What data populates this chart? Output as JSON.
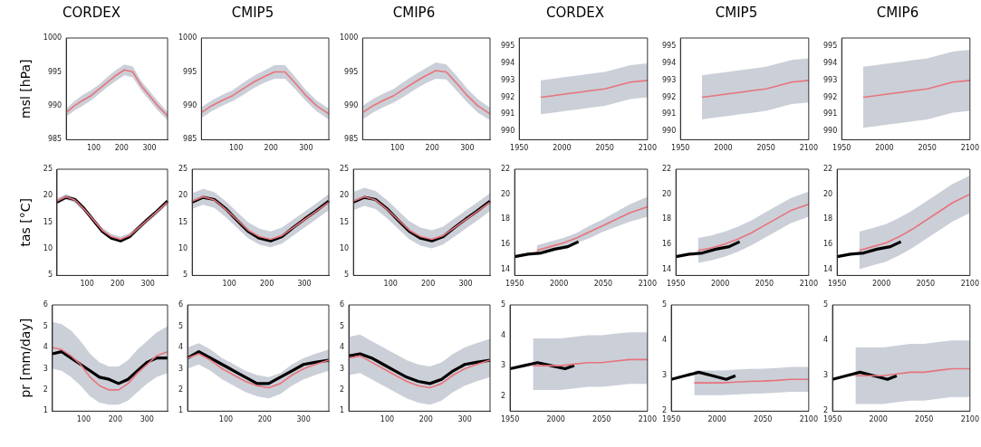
{
  "chart_data": [
    {
      "type": "line",
      "title": "CORDEX",
      "ylabel": "msl [hPa]",
      "xlim": [
        1,
        365
      ],
      "xticks": [
        100,
        200,
        300
      ],
      "ylim": [
        985,
        1000
      ],
      "yticks": [
        985,
        990,
        995,
        1000
      ],
      "x": [
        1,
        30,
        60,
        90,
        120,
        150,
        180,
        210,
        240,
        270,
        300,
        330,
        365
      ],
      "series": [
        {
          "color": "#e8737b",
          "values": [
            989,
            990,
            990.8,
            991.5,
            992.5,
            993.5,
            994.5,
            995.3,
            995,
            993,
            991.5,
            990,
            988.5
          ],
          "lower": [
            988.4,
            989.3,
            990,
            990.8,
            991.8,
            992.8,
            993.7,
            994.5,
            994.2,
            992.3,
            990.8,
            989.3,
            987.9
          ],
          "upper": [
            989.6,
            990.7,
            991.6,
            992.3,
            993.2,
            994.3,
            995.3,
            996.1,
            995.8,
            993.7,
            992.2,
            990.7,
            989.1
          ]
        }
      ]
    },
    {
      "type": "line",
      "title": "CMIP5",
      "xlim": [
        1,
        365
      ],
      "xticks": [
        100,
        200,
        300
      ],
      "ylim": [
        985,
        1000
      ],
      "yticks": [
        985,
        990,
        995,
        1000
      ],
      "x": [
        1,
        30,
        60,
        90,
        120,
        150,
        180,
        210,
        240,
        270,
        300,
        330,
        365
      ],
      "series": [
        {
          "color": "#e8737b",
          "values": [
            989,
            990,
            990.8,
            991.5,
            992.5,
            993.5,
            994.3,
            995,
            995,
            993.3,
            991.5,
            990,
            988.8
          ],
          "lower": [
            988.2,
            989.2,
            990,
            990.7,
            991.6,
            992.6,
            993.4,
            994,
            994,
            992.4,
            990.7,
            989.2,
            988
          ],
          "upper": [
            989.8,
            990.8,
            991.6,
            992.3,
            993.4,
            994.4,
            995.2,
            996,
            996,
            994.2,
            992.3,
            990.8,
            989.6
          ]
        }
      ]
    },
    {
      "type": "line",
      "title": "CMIP6",
      "xlim": [
        1,
        365
      ],
      "xticks": [
        100,
        200,
        300
      ],
      "ylim": [
        985,
        1000
      ],
      "yticks": [
        985,
        990,
        995,
        1000
      ],
      "x": [
        1,
        30,
        60,
        90,
        120,
        150,
        180,
        210,
        240,
        270,
        300,
        330,
        365
      ],
      "series": [
        {
          "color": "#e8737b",
          "values": [
            989,
            990,
            990.8,
            991.5,
            992.5,
            993.5,
            994.4,
            995.2,
            995,
            993.3,
            991.5,
            990,
            988.8
          ],
          "lower": [
            988,
            989,
            989.8,
            990.5,
            991.4,
            992.4,
            993.3,
            994,
            993.9,
            992.2,
            990.5,
            989,
            987.9
          ],
          "upper": [
            990,
            991,
            991.8,
            992.5,
            993.6,
            994.6,
            995.5,
            996.4,
            996.1,
            994.4,
            992.5,
            991,
            989.7
          ]
        }
      ]
    },
    {
      "type": "line",
      "title": "CORDEX",
      "xlim": [
        1950,
        2100
      ],
      "xticks": [
        1950,
        2000,
        2050,
        2100
      ],
      "ylim": [
        989.5,
        995.5
      ],
      "yticks": [
        990,
        991,
        992,
        993,
        994,
        995
      ],
      "x": [
        1975,
        1990,
        2005,
        2020,
        2035,
        2050,
        2065,
        2080,
        2100
      ],
      "series": [
        {
          "color": "#e8737b",
          "values": [
            992,
            992.1,
            992.2,
            992.3,
            992.4,
            992.5,
            992.7,
            992.9,
            993
          ],
          "lower": [
            991,
            991.1,
            991.2,
            991.3,
            991.4,
            991.5,
            991.7,
            991.9,
            992
          ],
          "upper": [
            993,
            993.1,
            993.2,
            993.3,
            993.4,
            993.5,
            993.7,
            993.9,
            994
          ]
        }
      ]
    },
    {
      "type": "line",
      "title": "CMIP5",
      "xlim": [
        1950,
        2100
      ],
      "xticks": [
        1950,
        2000,
        2050,
        2100
      ],
      "ylim": [
        989.5,
        995.5
      ],
      "yticks": [
        990,
        991,
        992,
        993,
        994,
        995
      ],
      "x": [
        1975,
        1990,
        2005,
        2020,
        2035,
        2050,
        2065,
        2080,
        2100
      ],
      "series": [
        {
          "color": "#e8737b",
          "values": [
            992,
            992.1,
            992.2,
            992.3,
            992.4,
            992.5,
            992.7,
            992.9,
            993
          ],
          "lower": [
            990.7,
            990.8,
            990.9,
            991,
            991.1,
            991.2,
            991.4,
            991.6,
            991.7
          ],
          "upper": [
            993.3,
            993.4,
            993.5,
            993.6,
            993.7,
            993.8,
            994,
            994.2,
            994.3
          ]
        }
      ]
    },
    {
      "type": "line",
      "title": "CMIP6",
      "xlim": [
        1950,
        2100
      ],
      "xticks": [
        1950,
        2000,
        2050,
        2100
      ],
      "ylim": [
        989.5,
        995.5
      ],
      "yticks": [
        990,
        991,
        992,
        993,
        994,
        995
      ],
      "x": [
        1975,
        1990,
        2005,
        2020,
        2035,
        2050,
        2065,
        2080,
        2100
      ],
      "series": [
        {
          "color": "#e8737b",
          "values": [
            992,
            992.1,
            992.2,
            992.3,
            992.4,
            992.5,
            992.7,
            992.9,
            993
          ],
          "lower": [
            990.2,
            990.3,
            990.4,
            990.5,
            990.6,
            990.7,
            990.9,
            991.1,
            991.2
          ],
          "upper": [
            993.8,
            993.9,
            994,
            994.1,
            994.2,
            994.3,
            994.5,
            994.7,
            994.8
          ]
        }
      ]
    },
    {
      "type": "line",
      "ylabel": "tas [°C]",
      "xlim": [
        1,
        365
      ],
      "xticks": [
        100,
        200,
        300
      ],
      "ylim": [
        5,
        25
      ],
      "yticks": [
        5,
        10,
        15,
        20,
        25
      ],
      "x": [
        1,
        30,
        60,
        90,
        120,
        150,
        180,
        210,
        240,
        270,
        300,
        330,
        365
      ],
      "series": [
        {
          "color": "#e8737b",
          "values": [
            19,
            19.8,
            19.2,
            17.5,
            15.5,
            13.5,
            12.3,
            11.8,
            12.5,
            14,
            15.5,
            17,
            18.8
          ],
          "lower": [
            18.5,
            19.3,
            18.7,
            17,
            15,
            13,
            11.8,
            11.3,
            12,
            13.5,
            15,
            16.5,
            18.3
          ],
          "upper": [
            19.5,
            20.3,
            19.7,
            18,
            16,
            14,
            12.8,
            12.3,
            13,
            14.5,
            16,
            17.5,
            19.3
          ]
        },
        {
          "color": "#000000",
          "values": [
            18.8,
            19.7,
            19.3,
            17.6,
            15.4,
            13.3,
            12,
            11.5,
            12.3,
            14,
            15.6,
            17.1,
            19
          ]
        }
      ]
    },
    {
      "type": "line",
      "xlim": [
        1,
        365
      ],
      "xticks": [
        100,
        200,
        300
      ],
      "ylim": [
        5,
        25
      ],
      "yticks": [
        5,
        10,
        15,
        20,
        25
      ],
      "x": [
        1,
        30,
        60,
        90,
        120,
        150,
        180,
        210,
        240,
        270,
        300,
        330,
        365
      ],
      "series": [
        {
          "color": "#e8737b",
          "values": [
            19,
            19.8,
            19.2,
            17.5,
            15.5,
            13.5,
            12.3,
            11.8,
            12.5,
            14,
            15.5,
            17,
            18.8
          ],
          "lower": [
            17.5,
            18.3,
            17.7,
            16,
            14,
            12,
            10.8,
            10.3,
            11,
            12.5,
            14,
            15.5,
            17.3
          ],
          "upper": [
            20.5,
            21.3,
            20.7,
            19,
            17,
            15,
            13.8,
            13.3,
            14,
            15.5,
            17,
            18.5,
            20.3
          ]
        },
        {
          "color": "#000000",
          "values": [
            18.8,
            19.7,
            19.3,
            17.6,
            15.4,
            13.3,
            12,
            11.5,
            12.3,
            14,
            15.6,
            17.1,
            19
          ]
        }
      ]
    },
    {
      "type": "line",
      "xlim": [
        1,
        365
      ],
      "xticks": [
        100,
        200,
        300
      ],
      "ylim": [
        5,
        25
      ],
      "yticks": [
        5,
        10,
        15,
        20,
        25
      ],
      "x": [
        1,
        30,
        60,
        90,
        120,
        150,
        180,
        210,
        240,
        270,
        300,
        330,
        365
      ],
      "series": [
        {
          "color": "#e8737b",
          "values": [
            19,
            19.8,
            19.2,
            17.5,
            15.5,
            13.5,
            12.3,
            11.8,
            12.5,
            14,
            15.5,
            17,
            18.8
          ],
          "lower": [
            17.3,
            18.1,
            17.5,
            15.8,
            13.8,
            11.8,
            10.6,
            10.1,
            10.8,
            12.3,
            13.8,
            15.3,
            17.1
          ],
          "upper": [
            20.7,
            21.5,
            20.9,
            19.2,
            17.2,
            15.2,
            14,
            13.5,
            14.2,
            15.7,
            17.2,
            18.7,
            20.5
          ]
        },
        {
          "color": "#000000",
          "values": [
            18.8,
            19.7,
            19.3,
            17.6,
            15.4,
            13.3,
            12,
            11.5,
            12.3,
            14,
            15.6,
            17.1,
            19
          ]
        }
      ]
    },
    {
      "type": "line",
      "xlim": [
        1950,
        2100
      ],
      "xticks": [
        1950,
        2000,
        2050,
        2100
      ],
      "ylim": [
        13.5,
        22
      ],
      "yticks": [
        14,
        16,
        18,
        20,
        22
      ],
      "series": [
        {
          "color": "#e8737b",
          "x": [
            1975,
            1990,
            2005,
            2020,
            2035,
            2050,
            2065,
            2080,
            2100
          ],
          "values": [
            15.5,
            15.8,
            16.1,
            16.5,
            17,
            17.5,
            18,
            18.5,
            19
          ],
          "lower": [
            15.1,
            15.4,
            15.7,
            16.1,
            16.5,
            17,
            17.4,
            17.8,
            18.2
          ],
          "upper": [
            15.9,
            16.2,
            16.5,
            16.9,
            17.5,
            18,
            18.6,
            19.2,
            19.8
          ]
        },
        {
          "color": "#000000",
          "x": [
            1950,
            1965,
            1980,
            1995,
            2010,
            2022
          ],
          "values": [
            15,
            15.2,
            15.3,
            15.6,
            15.8,
            16.2
          ]
        }
      ]
    },
    {
      "type": "line",
      "xlim": [
        1950,
        2100
      ],
      "xticks": [
        1950,
        2000,
        2050,
        2100
      ],
      "ylim": [
        13.5,
        22
      ],
      "yticks": [
        14,
        16,
        18,
        20,
        22
      ],
      "series": [
        {
          "color": "#e8737b",
          "x": [
            1975,
            1990,
            2005,
            2020,
            2035,
            2050,
            2065,
            2080,
            2100
          ],
          "values": [
            15.5,
            15.7,
            16,
            16.4,
            16.9,
            17.5,
            18.1,
            18.7,
            19.2
          ],
          "lower": [
            14.5,
            14.7,
            15,
            15.4,
            15.9,
            16.5,
            17.1,
            17.7,
            18.2
          ],
          "upper": [
            16.5,
            16.7,
            17,
            17.4,
            17.9,
            18.5,
            19.1,
            19.7,
            20.2
          ]
        },
        {
          "color": "#000000",
          "x": [
            1950,
            1965,
            1980,
            1995,
            2010,
            2022
          ],
          "values": [
            15,
            15.2,
            15.3,
            15.6,
            15.8,
            16.2
          ]
        }
      ]
    },
    {
      "type": "line",
      "xlim": [
        1950,
        2100
      ],
      "xticks": [
        1950,
        2000,
        2050,
        2100
      ],
      "ylim": [
        13.5,
        22
      ],
      "yticks": [
        14,
        16,
        18,
        20,
        22
      ],
      "series": [
        {
          "color": "#e8737b",
          "x": [
            1975,
            1990,
            2005,
            2020,
            2035,
            2050,
            2065,
            2080,
            2100
          ],
          "values": [
            15.5,
            15.8,
            16.1,
            16.6,
            17.2,
            17.9,
            18.6,
            19.3,
            20
          ],
          "lower": [
            14,
            14.3,
            14.6,
            15.1,
            15.7,
            16.4,
            17.1,
            17.8,
            18.5
          ],
          "upper": [
            17,
            17.3,
            17.6,
            18.1,
            18.7,
            19.4,
            20.1,
            20.8,
            21.5
          ]
        },
        {
          "color": "#000000",
          "x": [
            1950,
            1965,
            1980,
            1995,
            2010,
            2022
          ],
          "values": [
            15,
            15.2,
            15.3,
            15.6,
            15.8,
            16.2
          ]
        }
      ]
    },
    {
      "type": "line",
      "ylabel": "pr [mm/day]",
      "xlim": [
        1,
        365
      ],
      "xticks": [
        100,
        200,
        300
      ],
      "ylim": [
        1,
        6
      ],
      "yticks": [
        1,
        2,
        3,
        4,
        5,
        6
      ],
      "x": [
        1,
        30,
        60,
        90,
        120,
        150,
        180,
        210,
        240,
        270,
        300,
        330,
        365
      ],
      "series": [
        {
          "color": "#e8737b",
          "values": [
            4,
            3.9,
            3.6,
            3.2,
            2.6,
            2.2,
            2,
            2,
            2.3,
            2.8,
            3.2,
            3.6,
            3.8
          ],
          "lower": [
            3,
            2.9,
            2.6,
            2.2,
            1.7,
            1.4,
            1.3,
            1.3,
            1.5,
            1.9,
            2.3,
            2.6,
            2.8
          ],
          "upper": [
            5.2,
            5.1,
            4.8,
            4.3,
            3.7,
            3.3,
            3.1,
            3.1,
            3.4,
            3.9,
            4.3,
            4.7,
            5
          ]
        },
        {
          "color": "#000000",
          "values": [
            3.7,
            3.8,
            3.5,
            3.2,
            2.9,
            2.6,
            2.5,
            2.3,
            2.5,
            2.9,
            3.3,
            3.5,
            3.5
          ]
        }
      ]
    },
    {
      "type": "line",
      "xlim": [
        1,
        365
      ],
      "xticks": [
        100,
        200,
        300
      ],
      "ylim": [
        1,
        6
      ],
      "yticks": [
        1,
        2,
        3,
        4,
        5,
        6
      ],
      "x": [
        1,
        30,
        60,
        90,
        120,
        150,
        180,
        210,
        240,
        270,
        300,
        330,
        365
      ],
      "series": [
        {
          "color": "#e8737b",
          "values": [
            3.5,
            3.7,
            3.4,
            3,
            2.7,
            2.4,
            2.2,
            2.1,
            2.3,
            2.7,
            3,
            3.2,
            3.4
          ],
          "lower": [
            3,
            3.2,
            2.9,
            2.5,
            2.2,
            1.9,
            1.7,
            1.6,
            1.8,
            2.2,
            2.5,
            2.7,
            2.9
          ],
          "upper": [
            4,
            4.2,
            3.9,
            3.5,
            3.2,
            2.9,
            2.7,
            2.6,
            2.8,
            3.2,
            3.5,
            3.7,
            3.9
          ]
        },
        {
          "color": "#000000",
          "values": [
            3.5,
            3.8,
            3.5,
            3.2,
            2.9,
            2.6,
            2.3,
            2.3,
            2.6,
            2.9,
            3.2,
            3.3,
            3.4
          ]
        }
      ]
    },
    {
      "type": "line",
      "xlim": [
        1,
        365
      ],
      "xticks": [
        100,
        200,
        300
      ],
      "ylim": [
        1,
        6
      ],
      "yticks": [
        1,
        2,
        3,
        4,
        5,
        6
      ],
      "x": [
        1,
        30,
        60,
        90,
        120,
        150,
        180,
        210,
        240,
        270,
        300,
        330,
        365
      ],
      "series": [
        {
          "color": "#e8737b",
          "values": [
            3.5,
            3.6,
            3.3,
            3,
            2.7,
            2.4,
            2.2,
            2.1,
            2.3,
            2.7,
            3,
            3.2,
            3.4
          ],
          "lower": [
            2.7,
            2.8,
            2.5,
            2.2,
            1.9,
            1.6,
            1.4,
            1.3,
            1.5,
            1.9,
            2.2,
            2.4,
            2.6
          ],
          "upper": [
            4.5,
            4.6,
            4.3,
            4,
            3.7,
            3.4,
            3.2,
            3.1,
            3.3,
            3.7,
            4,
            4.2,
            4.4
          ]
        },
        {
          "color": "#000000",
          "values": [
            3.6,
            3.7,
            3.5,
            3.2,
            2.9,
            2.6,
            2.4,
            2.3,
            2.5,
            2.9,
            3.2,
            3.3,
            3.4
          ]
        }
      ]
    },
    {
      "type": "line",
      "xlim": [
        1950,
        2100
      ],
      "xticks": [
        1950,
        2000,
        2050,
        2100
      ],
      "ylim": [
        1.5,
        5
      ],
      "yticks": [
        2,
        3,
        4,
        5
      ],
      "series": [
        {
          "color": "#e8737b",
          "x": [
            1975,
            1990,
            2005,
            2020,
            2035,
            2050,
            2065,
            2080,
            2100
          ],
          "values": [
            3,
            3,
            3,
            3.05,
            3.1,
            3.1,
            3.15,
            3.2,
            3.2
          ],
          "lower": [
            2.2,
            2.2,
            2.2,
            2.25,
            2.3,
            2.3,
            2.35,
            2.4,
            2.4
          ],
          "upper": [
            3.9,
            3.9,
            3.9,
            3.95,
            4,
            4,
            4.05,
            4.1,
            4.1
          ]
        },
        {
          "color": "#000000",
          "x": [
            1950,
            1965,
            1980,
            1995,
            2010,
            2020
          ],
          "values": [
            2.9,
            3,
            3.1,
            3,
            2.9,
            3
          ]
        }
      ]
    },
    {
      "type": "line",
      "xlim": [
        1950,
        2100
      ],
      "xticks": [
        1950,
        2000,
        2050,
        2100
      ],
      "ylim": [
        2,
        5
      ],
      "yticks": [
        2,
        3,
        4,
        5
      ],
      "series": [
        {
          "color": "#e8737b",
          "x": [
            1975,
            1990,
            2005,
            2020,
            2035,
            2050,
            2065,
            2080,
            2100
          ],
          "values": [
            2.8,
            2.8,
            2.8,
            2.82,
            2.84,
            2.85,
            2.87,
            2.9,
            2.9
          ],
          "lower": [
            2.45,
            2.45,
            2.45,
            2.47,
            2.49,
            2.5,
            2.52,
            2.55,
            2.55
          ],
          "upper": [
            3.15,
            3.15,
            3.15,
            3.17,
            3.19,
            3.2,
            3.22,
            3.25,
            3.25
          ]
        },
        {
          "color": "#000000",
          "x": [
            1950,
            1965,
            1980,
            1995,
            2010,
            2020
          ],
          "values": [
            2.9,
            3,
            3.1,
            3,
            2.9,
            3
          ]
        }
      ]
    },
    {
      "type": "line",
      "xlim": [
        1950,
        2100
      ],
      "xticks": [
        1950,
        2000,
        2050,
        2100
      ],
      "ylim": [
        2,
        5
      ],
      "yticks": [
        2,
        3,
        4,
        5
      ],
      "series": [
        {
          "color": "#e8737b",
          "x": [
            1975,
            1990,
            2005,
            2020,
            2035,
            2050,
            2065,
            2080,
            2100
          ],
          "values": [
            3,
            3,
            3,
            3.05,
            3.1,
            3.1,
            3.15,
            3.2,
            3.2
          ],
          "lower": [
            2.2,
            2.2,
            2.2,
            2.25,
            2.3,
            2.3,
            2.35,
            2.4,
            2.4
          ],
          "upper": [
            3.8,
            3.8,
            3.8,
            3.85,
            3.9,
            3.9,
            3.95,
            4,
            4
          ]
        },
        {
          "color": "#000000",
          "x": [
            1950,
            1965,
            1980,
            1995,
            2010,
            2020
          ],
          "values": [
            2.9,
            3,
            3.1,
            3,
            2.9,
            3
          ]
        }
      ]
    }
  ]
}
